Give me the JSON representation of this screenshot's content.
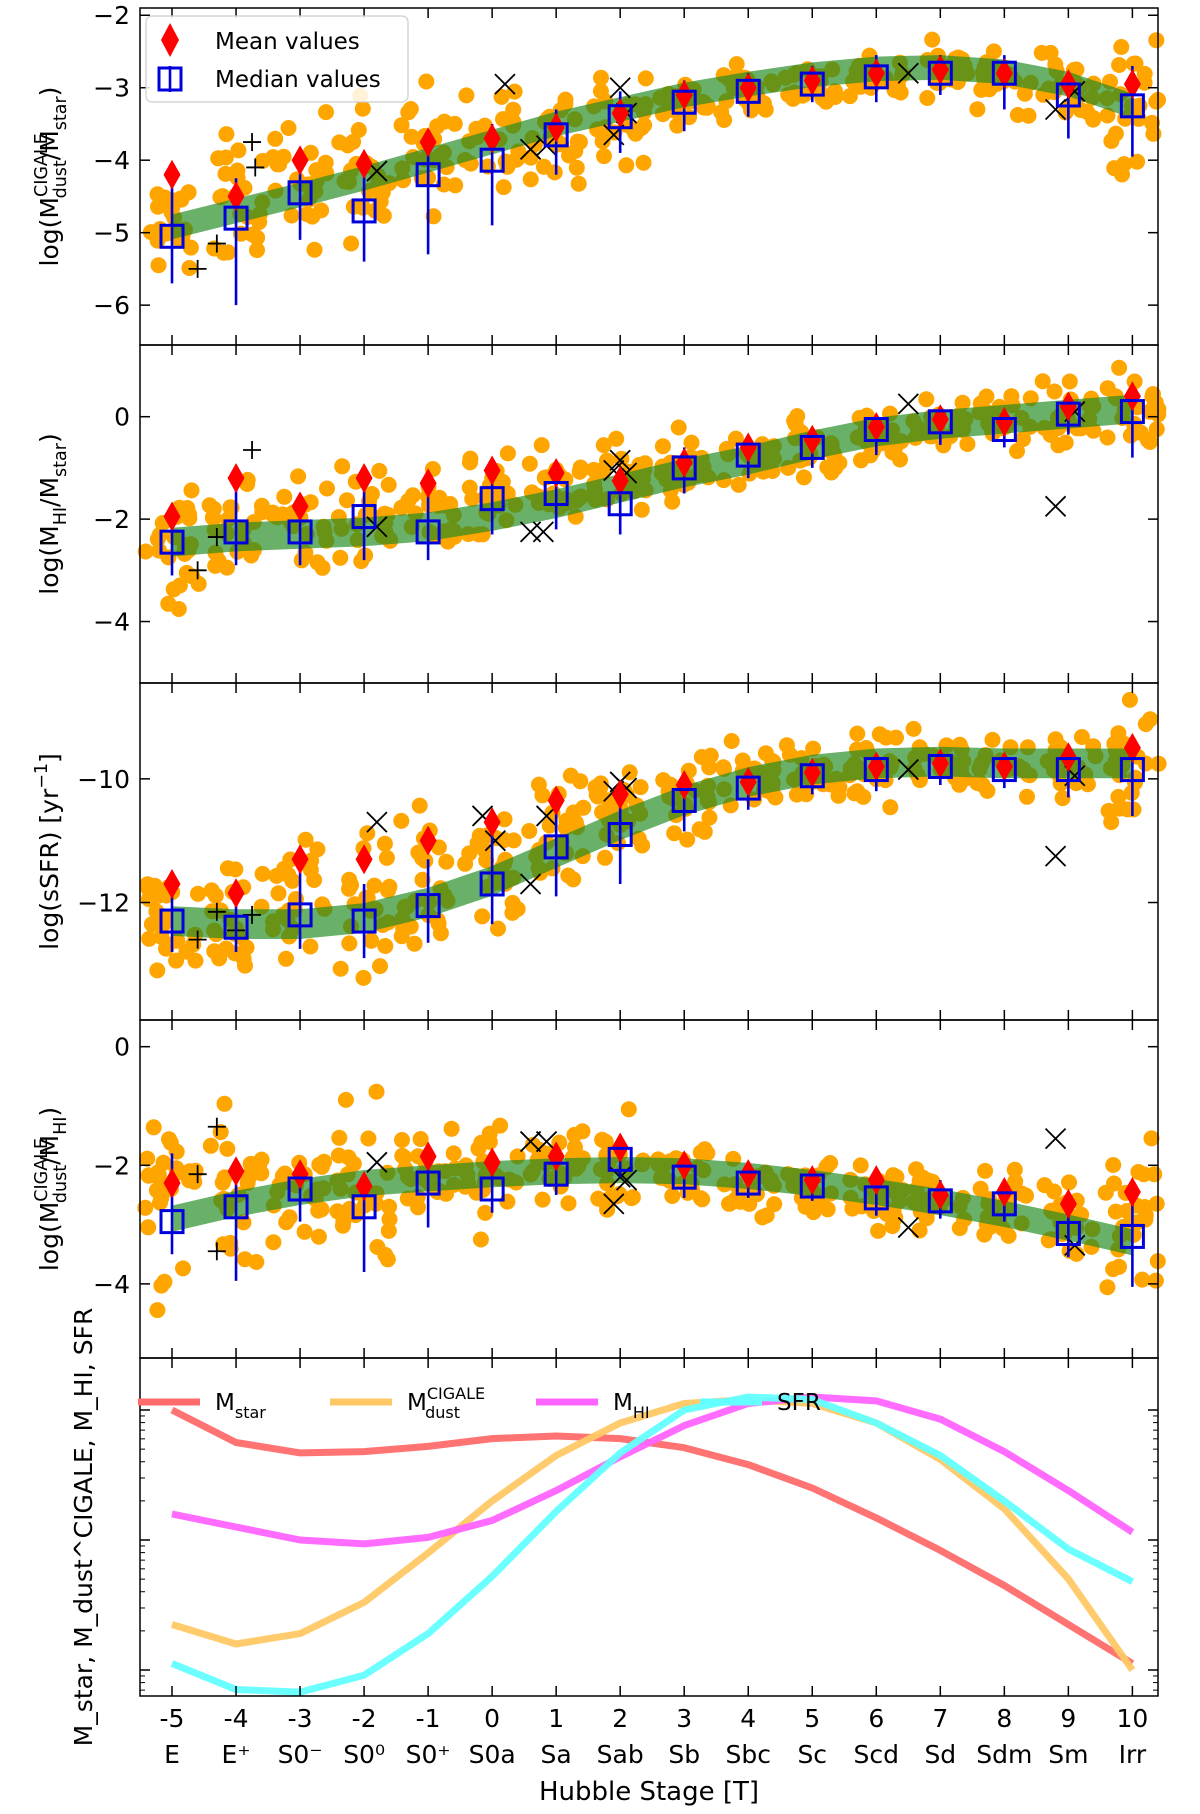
{
  "chart_data": {
    "type": "scatter",
    "xlabel": "Hubble Stage [T]",
    "x_ticks": [
      -5,
      -4,
      -3,
      -2,
      -1,
      0,
      1,
      2,
      3,
      4,
      5,
      6,
      7,
      8,
      9,
      10
    ],
    "x_tick_numbers": [
      "-5",
      "-4",
      "-3",
      "-2",
      "-1",
      "0",
      "1",
      "2",
      "3",
      "4",
      "5",
      "6",
      "7",
      "8",
      "9",
      "10"
    ],
    "x_tick_types": [
      "E",
      "E⁺",
      "S0⁻",
      "S0⁰",
      "S0⁺",
      "S0a",
      "Sa",
      "Sab",
      "Sb",
      "Sbc",
      "Sc",
      "Scd",
      "Sd",
      "Sdm",
      "Sm",
      "Irr"
    ],
    "xlim": [
      -5.5,
      10.4
    ],
    "legend": [
      {
        "label": "Mean values",
        "marker": "red-diamond"
      },
      {
        "label": "Median values",
        "marker": "blue-square"
      }
    ],
    "panels": [
      {
        "id": "dust-star",
        "ylabel": "log(M_dust^CIGALE/M_star)",
        "ylabel_main": "log(M",
        "ylabel_sup": "CIGALE",
        "ylabel_sub": "dust",
        "ylabel_tail": "/M",
        "ylabel_sub2": "star",
        "ylabel_close": ")",
        "ylim": [
          -6.55,
          -1.9
        ],
        "yticks": [
          -6,
          -5,
          -4,
          -3,
          -2
        ],
        "ytick_labels": [
          "−6",
          "−5",
          "−4",
          "−3",
          "−2"
        ],
        "mean": [
          -4.2,
          -4.5,
          -4.0,
          -4.05,
          -3.75,
          -3.7,
          -3.55,
          -3.35,
          -3.1,
          -3.0,
          -2.9,
          -2.8,
          -2.75,
          -2.8,
          -2.95,
          -2.95
        ],
        "median": [
          -5.05,
          -4.8,
          -4.45,
          -4.7,
          -4.2,
          -4.0,
          -3.65,
          -3.4,
          -3.2,
          -3.05,
          -2.95,
          -2.85,
          -2.8,
          -2.8,
          -3.1,
          -3.25
        ],
        "err_low": [
          -5.7,
          -6.0,
          -5.1,
          -5.4,
          -5.3,
          -4.9,
          -4.2,
          -3.9,
          -3.6,
          -3.4,
          -3.2,
          -3.2,
          -3.1,
          -3.3,
          -3.7,
          -3.95
        ],
        "err_high": [
          -4.3,
          -4.25,
          -3.9,
          -4.05,
          -3.7,
          -3.5,
          -3.3,
          -3.05,
          -2.9,
          -2.8,
          -2.7,
          -2.55,
          -2.55,
          -2.55,
          -2.8,
          -2.7
        ],
        "trend": [
          -4.92,
          -4.7,
          -4.48,
          -4.25,
          -4.0,
          -3.75,
          -3.5,
          -3.3,
          -3.1,
          -2.95,
          -2.82,
          -2.74,
          -2.72,
          -2.78,
          -2.95,
          -3.25
        ],
        "trend_halfwidth": 0.17,
        "crosses": [
          [
            -1.8,
            -4.15
          ],
          [
            0.2,
            -2.95
          ],
          [
            0.6,
            -3.85
          ],
          [
            0.85,
            -3.8
          ],
          [
            1.9,
            -3.65
          ],
          [
            2.0,
            -3.0
          ],
          [
            2.1,
            -3.35
          ],
          [
            6.5,
            -2.8
          ],
          [
            8.8,
            -3.3
          ],
          [
            9.1,
            -3.05
          ]
        ],
        "pluses": [
          [
            -4.6,
            -5.5
          ],
          [
            -4.3,
            -5.15
          ],
          [
            -3.75,
            -3.75
          ],
          [
            -3.7,
            -4.1
          ]
        ],
        "scatter_center": [
          -4.9,
          -4.6,
          -4.3,
          -4.1,
          -3.9,
          -3.7,
          -3.6,
          -3.45,
          -3.2,
          -3.05,
          -2.95,
          -2.85,
          -2.8,
          -2.85,
          -3.0,
          -3.3
        ],
        "scatter_spread": [
          0.5,
          0.6,
          0.6,
          0.65,
          0.6,
          0.55,
          0.45,
          0.4,
          0.3,
          0.25,
          0.25,
          0.25,
          0.25,
          0.3,
          0.4,
          0.75
        ]
      },
      {
        "id": "hi-star",
        "ylabel": "log(M_HI/M_star)",
        "ylabel_main": "log(M",
        "ylabel_sup": "",
        "ylabel_sub": "HI",
        "ylabel_tail": "/M",
        "ylabel_sub2": "star",
        "ylabel_close": ")",
        "ylim": [
          -5.2,
          1.4
        ],
        "yticks": [
          -4,
          -2,
          0
        ],
        "ytick_labels": [
          "−4",
          "−2",
          "0"
        ],
        "mean": [
          -1.95,
          -1.2,
          -1.75,
          -1.2,
          -1.3,
          -1.05,
          -1.1,
          -1.25,
          -0.9,
          -0.6,
          -0.45,
          -0.2,
          -0.05,
          -0.1,
          0.2,
          0.4
        ],
        "median": [
          -2.45,
          -2.25,
          -2.25,
          -1.95,
          -2.25,
          -1.6,
          -1.5,
          -1.7,
          -1.0,
          -0.75,
          -0.6,
          -0.25,
          -0.1,
          -0.25,
          0.05,
          0.1
        ],
        "err_low": [
          -3.1,
          -2.9,
          -2.9,
          -2.8,
          -2.8,
          -2.3,
          -2.2,
          -2.3,
          -1.5,
          -1.2,
          -1.0,
          -0.75,
          -0.55,
          -0.6,
          -0.35,
          -0.8
        ],
        "err_high": [
          -1.95,
          -1.3,
          -1.8,
          -1.4,
          -1.5,
          -1.1,
          -0.95,
          -1.15,
          -0.6,
          -0.4,
          -0.3,
          0.0,
          0.2,
          0.1,
          0.45,
          0.55
        ],
        "trend": [
          -2.45,
          -2.35,
          -2.3,
          -2.25,
          -2.15,
          -1.95,
          -1.7,
          -1.4,
          -1.1,
          -0.85,
          -0.55,
          -0.3,
          -0.15,
          -0.05,
          0.05,
          0.15
        ],
        "trend_halfwidth": 0.28,
        "crosses": [
          [
            -1.8,
            -2.15
          ],
          [
            0.6,
            -2.25
          ],
          [
            0.8,
            -2.25
          ],
          [
            1.9,
            -1.05
          ],
          [
            2.0,
            -0.85
          ],
          [
            2.1,
            -1.1
          ],
          [
            6.5,
            0.25
          ],
          [
            8.8,
            -1.75
          ],
          [
            9.1,
            0.1
          ]
        ],
        "pluses": [
          [
            -4.6,
            -3.0
          ],
          [
            -4.3,
            -2.35
          ],
          [
            -3.75,
            -0.65
          ]
        ],
        "scatter_center": [
          -2.4,
          -2.2,
          -2.1,
          -2.0,
          -1.9,
          -1.7,
          -1.5,
          -1.3,
          -1.0,
          -0.8,
          -0.6,
          -0.35,
          -0.2,
          -0.1,
          0.0,
          0.1
        ],
        "scatter_spread": [
          0.9,
          0.7,
          0.6,
          0.7,
          0.6,
          0.6,
          0.55,
          0.5,
          0.45,
          0.4,
          0.45,
          0.4,
          0.35,
          0.35,
          0.4,
          0.55
        ]
      },
      {
        "id": "ssfr",
        "ylabel": "log(sSFR) [yr⁻¹]",
        "ylabel_main": "log(sSFR) [yr",
        "ylabel_sup": "−1",
        "ylabel_sub": "",
        "ylabel_tail": "",
        "ylabel_sub2": "",
        "ylabel_close": "]",
        "ylim": [
          -13.9,
          -8.45
        ],
        "yticks": [
          -12,
          -10
        ],
        "ytick_labels": [
          "−12",
          "−10"
        ],
        "mean": [
          -11.7,
          -11.85,
          -11.3,
          -11.3,
          -11.0,
          -10.7,
          -10.35,
          -10.25,
          -10.1,
          -10.05,
          -9.9,
          -9.8,
          -9.75,
          -9.8,
          -9.65,
          -9.5
        ],
        "median": [
          -12.3,
          -12.4,
          -12.2,
          -12.3,
          -12.05,
          -11.7,
          -11.1,
          -10.9,
          -10.35,
          -10.15,
          -9.95,
          -9.85,
          -9.8,
          -9.85,
          -9.85,
          -9.85
        ],
        "err_low": [
          -12.8,
          -12.8,
          -12.75,
          -12.9,
          -12.65,
          -12.35,
          -11.9,
          -11.7,
          -10.85,
          -10.5,
          -10.25,
          -10.2,
          -10.1,
          -10.15,
          -10.3,
          -10.6
        ],
        "err_high": [
          -11.9,
          -11.9,
          -11.5,
          -11.7,
          -11.3,
          -10.9,
          -10.45,
          -10.35,
          -10.05,
          -9.9,
          -9.75,
          -9.65,
          -9.6,
          -9.65,
          -9.55,
          -9.4
        ],
        "trend": [
          -12.3,
          -12.35,
          -12.35,
          -12.25,
          -12.0,
          -11.65,
          -11.2,
          -10.75,
          -10.35,
          -10.05,
          -9.85,
          -9.75,
          -9.72,
          -9.75,
          -9.75,
          -9.75
        ],
        "trend_halfwidth": 0.24,
        "crosses": [
          [
            -1.8,
            -10.7
          ],
          [
            -0.15,
            -10.6
          ],
          [
            0.05,
            -11.0
          ],
          [
            0.6,
            -11.7
          ],
          [
            0.85,
            -10.6
          ],
          [
            1.9,
            -10.2
          ],
          [
            2.0,
            -10.05
          ],
          [
            2.1,
            -10.15
          ],
          [
            6.5,
            -9.85
          ],
          [
            8.8,
            -11.25
          ],
          [
            9.1,
            -9.95
          ]
        ],
        "pluses": [
          [
            -4.6,
            -12.6
          ],
          [
            -4.3,
            -12.15
          ],
          [
            -4.0,
            -12.45
          ],
          [
            -3.75,
            -12.2
          ]
        ],
        "scatter_center": [
          -12.3,
          -12.2,
          -12.0,
          -11.9,
          -11.7,
          -11.3,
          -10.9,
          -10.5,
          -10.2,
          -10.0,
          -9.9,
          -9.8,
          -9.75,
          -9.8,
          -9.75,
          -9.75
        ],
        "scatter_spread": [
          0.6,
          0.6,
          0.7,
          0.8,
          0.8,
          0.8,
          0.8,
          0.7,
          0.55,
          0.45,
          0.4,
          0.45,
          0.35,
          0.35,
          0.45,
          0.7
        ]
      },
      {
        "id": "dust-hi",
        "ylabel": "log(M_dust^CIGALE/M_HI)",
        "ylabel_main": "log(M",
        "ylabel_sup": "CIGALE",
        "ylabel_sub": "dust",
        "ylabel_tail": "/M",
        "ylabel_sub2": "HI",
        "ylabel_close": ")",
        "ylim": [
          -5.25,
          0.45
        ],
        "yticks": [
          -4,
          -2,
          0
        ],
        "ytick_labels": [
          "−4",
          "−2",
          "0"
        ],
        "mean": [
          -2.3,
          -2.1,
          -2.15,
          -2.35,
          -1.85,
          -1.95,
          -1.85,
          -1.7,
          -2.0,
          -2.15,
          -2.25,
          -2.25,
          -2.5,
          -2.45,
          -2.65,
          -2.45
        ],
        "median": [
          -2.95,
          -2.7,
          -2.4,
          -2.7,
          -2.3,
          -2.4,
          -2.15,
          -1.9,
          -2.2,
          -2.3,
          -2.35,
          -2.55,
          -2.6,
          -2.65,
          -3.15,
          -3.2
        ],
        "err_low": [
          -3.5,
          -3.95,
          -2.95,
          -3.8,
          -3.05,
          -2.8,
          -2.5,
          -2.2,
          -2.55,
          -2.55,
          -2.6,
          -2.85,
          -2.9,
          -2.95,
          -3.55,
          -4.05
        ],
        "err_high": [
          -1.8,
          -1.95,
          -2.0,
          -2.15,
          -1.65,
          -1.9,
          -1.75,
          -1.55,
          -1.85,
          -2.0,
          -2.1,
          -2.05,
          -2.25,
          -2.25,
          -2.5,
          -2.4
        ],
        "trend": [
          -2.9,
          -2.65,
          -2.45,
          -2.3,
          -2.22,
          -2.15,
          -2.1,
          -2.08,
          -2.1,
          -2.18,
          -2.3,
          -2.45,
          -2.62,
          -2.82,
          -3.05,
          -3.3
        ],
        "trend_halfwidth": 0.22,
        "crosses": [
          [
            -1.8,
            -1.95
          ],
          [
            0.6,
            -1.6
          ],
          [
            0.85,
            -1.6
          ],
          [
            1.9,
            -2.65
          ],
          [
            2.0,
            -2.2
          ],
          [
            2.1,
            -2.25
          ],
          [
            6.5,
            -3.05
          ],
          [
            8.8,
            -1.55
          ],
          [
            9.1,
            -3.35
          ]
        ],
        "pluses": [
          [
            -4.6,
            -2.15
          ],
          [
            -4.3,
            -3.45
          ],
          [
            -4.3,
            -1.35
          ]
        ],
        "scatter_center": [
          -2.6,
          -2.6,
          -2.3,
          -2.5,
          -2.2,
          -2.2,
          -2.0,
          -1.9,
          -2.15,
          -2.3,
          -2.35,
          -2.5,
          -2.6,
          -2.7,
          -3.0,
          -3.1
        ],
        "scatter_spread": [
          1.0,
          0.8,
          0.6,
          0.9,
          0.65,
          0.6,
          0.5,
          0.5,
          0.35,
          0.35,
          0.35,
          0.45,
          0.4,
          0.45,
          0.7,
          0.9
        ]
      }
    ],
    "bottom_panel": {
      "ylabel": "M_star, M_dust^CIGALE, M_HI, SFR",
      "y_scale": "log (arbitrary, normalized)",
      "ylim_log": [
        -2.2,
        0.4
      ],
      "series": [
        {
          "name": "M_star",
          "label_main": "M",
          "label_sub": "star",
          "label_sup": "",
          "color": "#ff6b6b",
          "values": [
            0.0,
            -0.25,
            -0.33,
            -0.32,
            -0.28,
            -0.22,
            -0.2,
            -0.22,
            -0.29,
            -0.42,
            -0.6,
            -0.83,
            -1.08,
            -1.35,
            -1.65,
            -1.95
          ]
        },
        {
          "name": "M_dust^CIGALE",
          "label_main": "M",
          "label_sub": "dust",
          "label_sup": "CIGALE",
          "color": "#ffc864",
          "values": [
            -1.65,
            -1.8,
            -1.72,
            -1.48,
            -1.1,
            -0.7,
            -0.35,
            -0.1,
            0.05,
            0.08,
            0.05,
            -0.1,
            -0.38,
            -0.76,
            -1.3,
            -2.0
          ]
        },
        {
          "name": "M_HI",
          "label_main": "M",
          "label_sub": "HI",
          "label_sup": "",
          "color": "#ff64ff",
          "values": [
            -0.8,
            -0.9,
            -1.0,
            -1.03,
            -0.98,
            -0.85,
            -0.62,
            -0.36,
            -0.12,
            0.05,
            0.1,
            0.07,
            -0.07,
            -0.32,
            -0.62,
            -0.94
          ]
        },
        {
          "name": "SFR",
          "label_main": "SFR",
          "label_sub": "",
          "label_sup": "",
          "color": "#64ffff",
          "values": [
            -1.95,
            -2.15,
            -2.17,
            -2.04,
            -1.72,
            -1.28,
            -0.78,
            -0.33,
            0.0,
            0.1,
            0.08,
            -0.1,
            -0.35,
            -0.7,
            -1.07,
            -1.32
          ]
        }
      ]
    }
  }
}
